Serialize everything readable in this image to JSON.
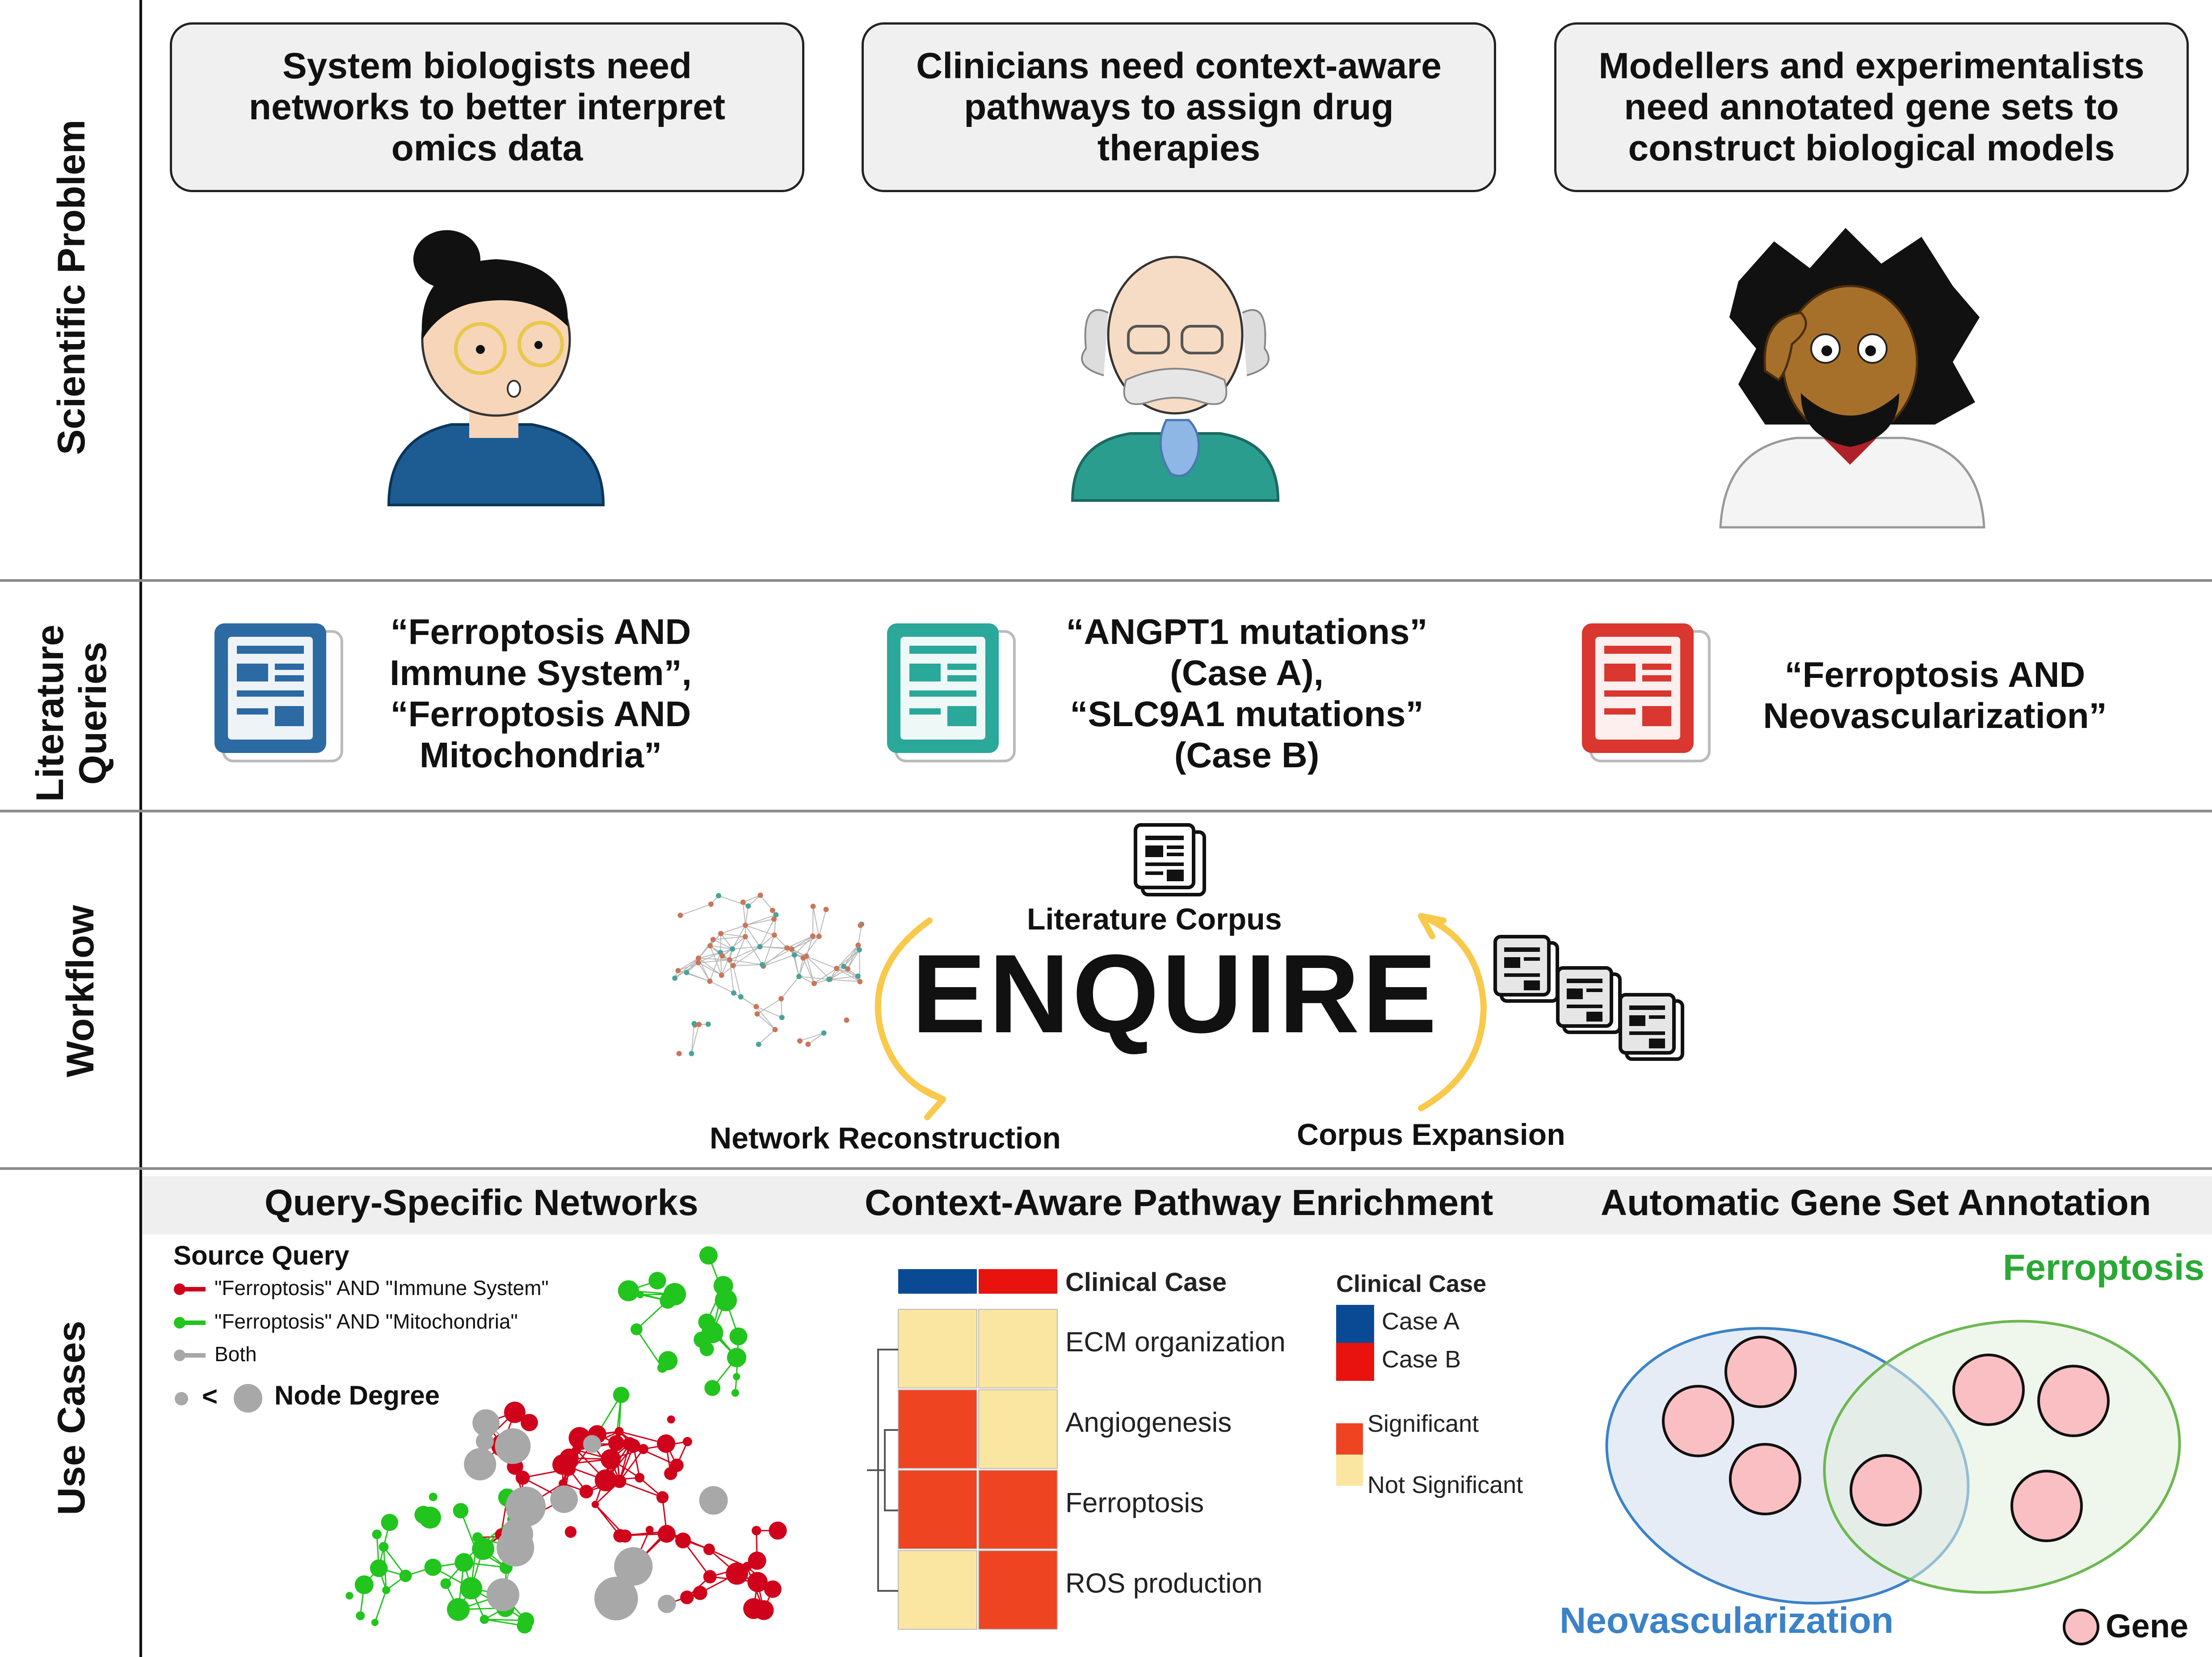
{
  "rows": {
    "problem_label": "Scientific Problem",
    "queries_label_line1": "Literature",
    "queries_label_line2": "Queries",
    "workflow_label": "Workflow",
    "usecases_label": "Use Cases"
  },
  "problems": [
    {
      "line1": "System biologists need",
      "line2": "networks to better interpret",
      "line3": "omics data"
    },
    {
      "line1": "Clinicians need context-aware",
      "line2": "pathways to assign drug",
      "line3": "therapies"
    },
    {
      "line1": "Modellers and experimentalists",
      "line2": "need annotated gene sets to",
      "line3": "construct biological models"
    }
  ],
  "queries": [
    {
      "lines": [
        "“Ferroptosis AND",
        "Immune System”,",
        "“Ferroptosis AND",
        "Mitochondria”"
      ],
      "color": "#2b6aa3"
    },
    {
      "lines": [
        "“ANGPT1 mutations”",
        "(Case A),",
        "“SLC9A1 mutations”",
        "(Case B)"
      ],
      "color": "#2aa89a"
    },
    {
      "lines": [
        "“Ferroptosis AND",
        "Neovascularization”"
      ],
      "color": "#d9372f"
    }
  ],
  "workflow": {
    "center": "ENQUIRE",
    "literature_corpus": "Literature Corpus",
    "network_reconstruction": "Network Reconstruction",
    "corpus_expansion": "Corpus Expansion"
  },
  "usecases": {
    "titles": [
      "Query-Specific Networks",
      "Context-Aware Pathway Enrichment",
      "Automatic Gene Set Annotation"
    ],
    "network_legend": {
      "title": "Source Query",
      "red": "\"Ferroptosis\" AND \"Immune System\"",
      "green": "\"Ferroptosis\" AND \"Mitochondria\"",
      "both": "Both",
      "lt": "<",
      "degree": "Node Degree",
      "colors": {
        "red": "#d0021b",
        "green": "#22c41e",
        "gray": "#a8a8a8"
      }
    },
    "heatmap": {
      "header": "Clinical Case",
      "rows": [
        "ECM organization",
        "Angiogenesis",
        "Ferroptosis",
        "ROS production"
      ],
      "cases": [
        "Case A",
        "Case B"
      ],
      "case_colors": [
        "#0a4a94",
        "#e8120f"
      ],
      "significance": [
        [
          false,
          false
        ],
        [
          true,
          false
        ],
        [
          true,
          true
        ],
        [
          false,
          true
        ]
      ],
      "legend_title": "Clinical Case",
      "sig_label": "Significant",
      "nonsig_label": "Not Significant",
      "sig_color": "#ee4422",
      "nonsig_color": "#fbe6a1"
    },
    "venn": {
      "left_label": "Neovascularization",
      "right_label": "Ferroptosis",
      "gene_label": "Gene",
      "left_color": "#3b82c8",
      "right_color": "#2aa836"
    }
  }
}
